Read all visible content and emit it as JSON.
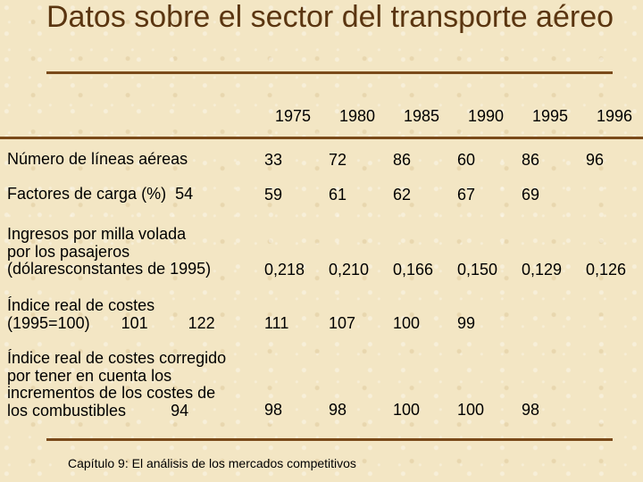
{
  "slide": {
    "title": "Datos sobre el sector del transporte aéreo",
    "footer": "Capítulo 9: El análisis de los mercados competitivos"
  },
  "years": [
    "1975",
    "1980",
    "1985",
    "1990",
    "1995",
    "1996"
  ],
  "rows": [
    {
      "label": "Número de líneas aéreas",
      "values": [
        "33",
        "72",
        "86",
        "60",
        "86",
        "96"
      ]
    },
    {
      "label": "Factores de carga (%)  54",
      "values": [
        "59",
        "61",
        "62",
        "67",
        "69"
      ]
    },
    {
      "label": "Ingresos por milla volada\npor los pasajeros\n(dólaresconstantes de 1995)",
      "values": [
        "0,218",
        "0,210",
        "0,166",
        "0,150",
        "0,129",
        "0,126"
      ]
    },
    {
      "label": "Índice real de costes\n(1995=100)       101         122",
      "values": [
        "111",
        "107",
        "100",
        "99"
      ]
    },
    {
      "label": "Índice real de costes corregido\npor tener en cuenta los\nincrementos de los costes de\nlos combustibles          94",
      "values": [
        "98",
        "98",
        "100",
        "100",
        "98"
      ]
    }
  ]
}
